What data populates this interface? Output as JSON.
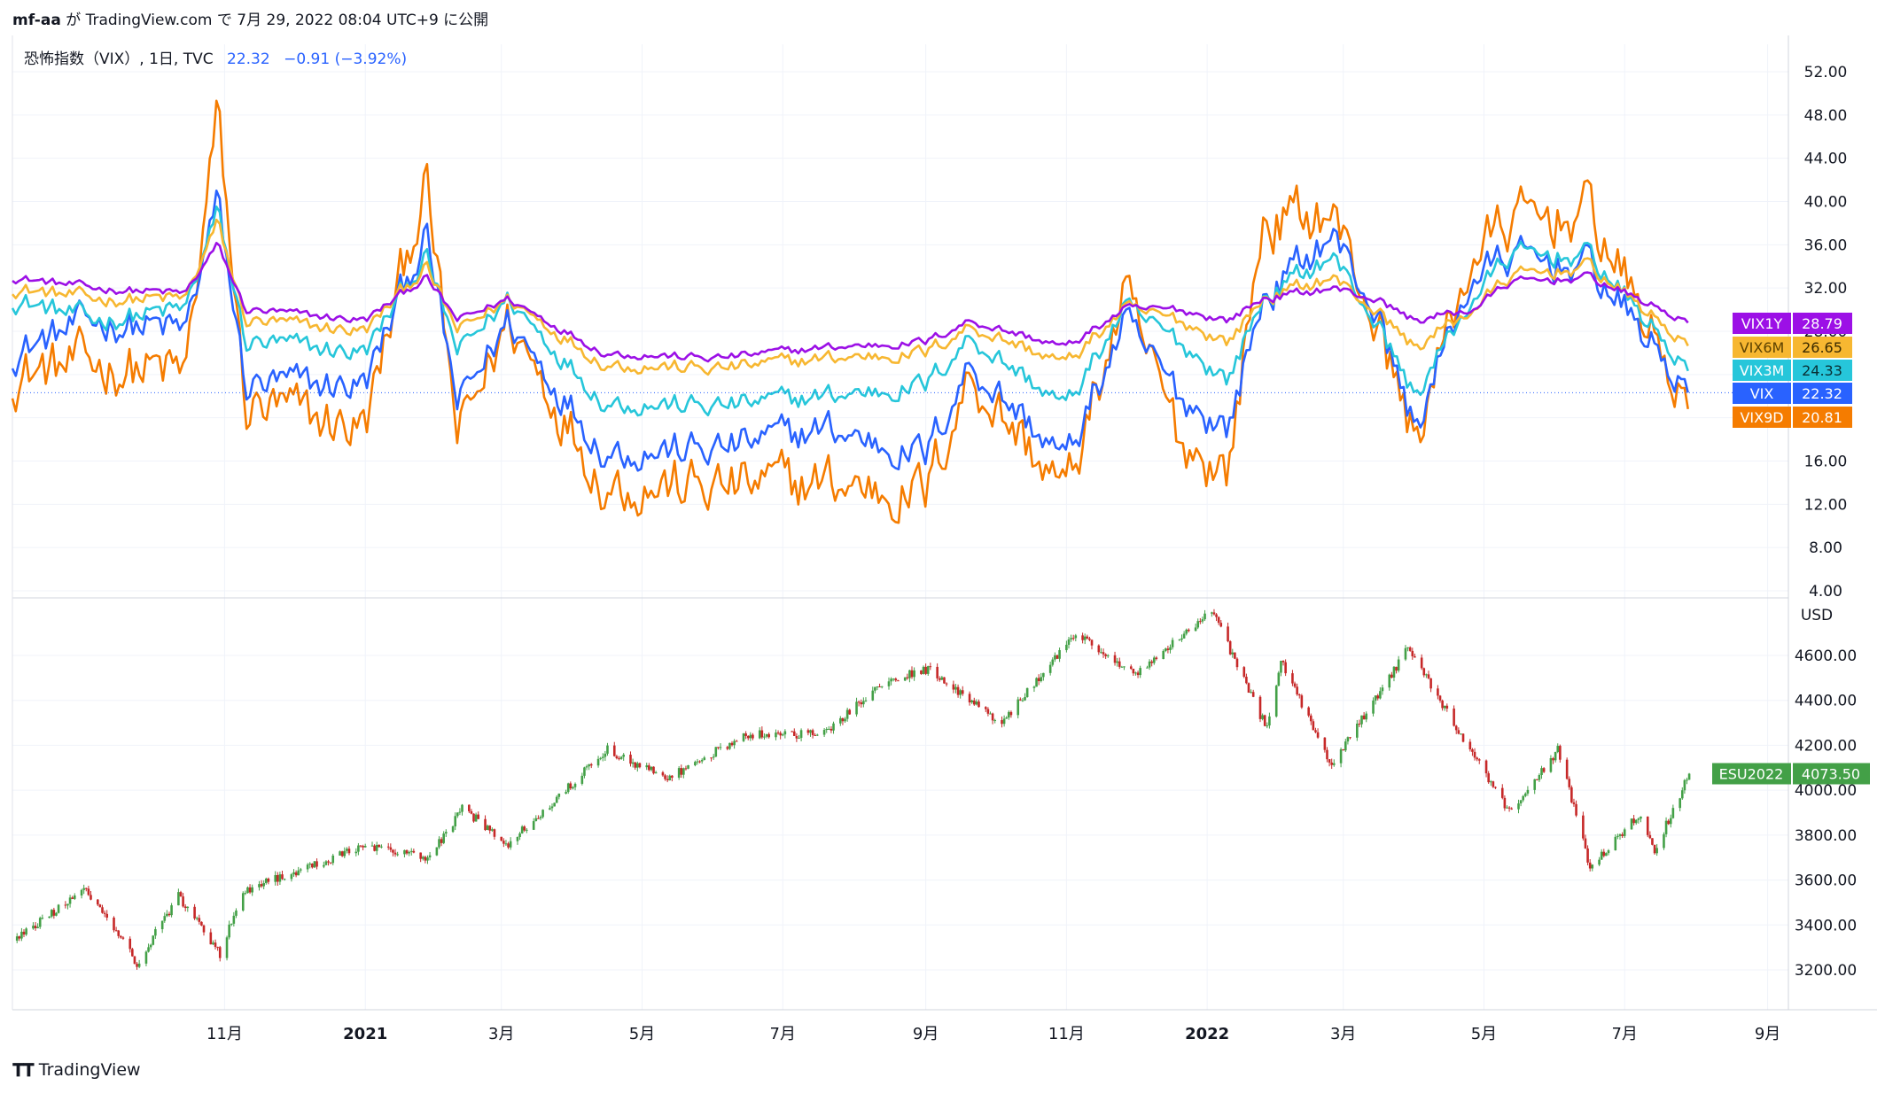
{
  "header": {
    "publisher": "mf-aa",
    "text": "が TradingView.com で 7月 29, 2022 08:04 UTC+9 に公開"
  },
  "legend": {
    "title": "恐怖指数（VIX）, 1日, TVC",
    "value": "22.32",
    "change": "−0.91 (−3.92%)"
  },
  "footer": {
    "brand": "TradingView"
  },
  "colors": {
    "VIX1Y": "#9c10e6",
    "VIX6M": "#f7b731",
    "VIX3M": "#26c6da",
    "VIX": "#2962ff",
    "VIX9D": "#f57c00",
    "up": "#26a69a",
    "up_es": "#43a047",
    "down": "#c62828",
    "grid": "#f0f3fa",
    "axis_text": "#131722"
  },
  "chart_data": [
    {
      "type": "line",
      "name": "vix-term-structure",
      "y_axis_labels": [
        "52.00",
        "48.00",
        "44.00",
        "40.00",
        "36.00",
        "32.00",
        "28.00",
        "24.00",
        "20.00",
        "16.00",
        "12.00",
        "8.00",
        "4.00"
      ],
      "ylim": [
        4,
        52
      ],
      "x_range": [
        "2020-08-01",
        "2022-09-10"
      ],
      "x_tick_labels": [
        "11月",
        "2021",
        "3月",
        "5月",
        "7月",
        "9月",
        "11月",
        "2022",
        "3月",
        "5月",
        "7月",
        "9月"
      ],
      "x_ticks": [
        "2020-11-01",
        "2021-01-01",
        "2021-03-01",
        "2021-05-01",
        "2021-07-01",
        "2021-09-01",
        "2021-11-01",
        "2022-01-01",
        "2022-03-01",
        "2022-05-01",
        "2022-07-01",
        "2022-09-01"
      ],
      "last_value_line": 22.32,
      "series": [
        {
          "name": "VIX1Y",
          "last_label": "28.79",
          "points": [
            [
              "2020-08-01",
              33
            ],
            [
              "2020-09-05",
              32
            ],
            [
              "2020-10-15",
              31.5
            ],
            [
              "2020-10-29",
              36
            ],
            [
              "2020-11-10",
              30
            ],
            [
              "2021-01-01",
              29
            ],
            [
              "2021-01-27",
              33
            ],
            [
              "2021-02-10",
              29
            ],
            [
              "2021-03-04",
              31
            ],
            [
              "2021-04-15",
              26
            ],
            [
              "2021-06-01",
              25.5
            ],
            [
              "2021-07-20",
              26.5
            ],
            [
              "2021-09-01",
              27
            ],
            [
              "2021-09-20",
              29
            ],
            [
              "2021-11-01",
              26.5
            ],
            [
              "2021-11-26",
              30
            ],
            [
              "2021-12-20",
              30
            ],
            [
              "2022-01-10",
              29
            ],
            [
              "2022-01-25",
              31
            ],
            [
              "2022-02-24",
              32
            ],
            [
              "2022-03-15",
              31
            ],
            [
              "2022-04-01",
              29
            ],
            [
              "2022-04-26",
              30
            ],
            [
              "2022-05-12",
              32.5
            ],
            [
              "2022-06-16",
              33
            ],
            [
              "2022-07-29",
              28.79
            ]
          ]
        },
        {
          "name": "VIX6M",
          "last_label": "26.65",
          "points": [
            [
              "2020-08-01",
              32
            ],
            [
              "2020-09-05",
              31
            ],
            [
              "2020-10-15",
              31
            ],
            [
              "2020-10-29",
              38
            ],
            [
              "2020-11-10",
              29
            ],
            [
              "2021-01-01",
              28
            ],
            [
              "2021-01-27",
              34
            ],
            [
              "2021-02-10",
              28
            ],
            [
              "2021-03-04",
              31
            ],
            [
              "2021-04-15",
              25
            ],
            [
              "2021-06-01",
              24.5
            ],
            [
              "2021-07-20",
              25.5
            ],
            [
              "2021-09-01",
              26
            ],
            [
              "2021-09-20",
              28.5
            ],
            [
              "2021-11-01",
              25
            ],
            [
              "2021-11-26",
              30
            ],
            [
              "2021-12-20",
              29
            ],
            [
              "2022-01-10",
              27
            ],
            [
              "2022-01-25",
              31
            ],
            [
              "2022-02-24",
              33
            ],
            [
              "2022-03-15",
              30
            ],
            [
              "2022-04-01",
              26.5
            ],
            [
              "2022-04-26",
              30
            ],
            [
              "2022-05-12",
              33
            ],
            [
              "2022-06-16",
              34
            ],
            [
              "2022-07-29",
              26.65
            ]
          ]
        },
        {
          "name": "VIX3M",
          "last_label": "24.33",
          "points": [
            [
              "2020-08-01",
              31
            ],
            [
              "2020-09-05",
              29
            ],
            [
              "2020-10-15",
              30
            ],
            [
              "2020-10-29",
              39
            ],
            [
              "2020-11-10",
              27
            ],
            [
              "2021-01-01",
              26
            ],
            [
              "2021-01-27",
              35
            ],
            [
              "2021-02-10",
              26
            ],
            [
              "2021-03-04",
              31
            ],
            [
              "2021-04-15",
              21.5
            ],
            [
              "2021-06-01",
              21
            ],
            [
              "2021-07-20",
              22
            ],
            [
              "2021-09-01",
              23
            ],
            [
              "2021-09-20",
              27.5
            ],
            [
              "2021-11-01",
              21
            ],
            [
              "2021-11-26",
              30
            ],
            [
              "2021-12-20",
              27
            ],
            [
              "2022-01-10",
              23.5
            ],
            [
              "2022-01-25",
              31
            ],
            [
              "2022-02-24",
              35
            ],
            [
              "2022-03-15",
              29
            ],
            [
              "2022-04-01",
              22
            ],
            [
              "2022-04-26",
              31
            ],
            [
              "2022-05-12",
              35
            ],
            [
              "2022-06-16",
              35
            ],
            [
              "2022-07-29",
              24.33
            ]
          ]
        },
        {
          "name": "VIX",
          "last_label": "22.32",
          "points": [
            [
              "2020-08-01",
              26
            ],
            [
              "2020-09-05",
              29
            ],
            [
              "2020-10-15",
              28
            ],
            [
              "2020-10-29",
              40
            ],
            [
              "2020-11-10",
              23
            ],
            [
              "2021-01-01",
              23
            ],
            [
              "2021-01-27",
              37
            ],
            [
              "2021-02-10",
              21
            ],
            [
              "2021-03-04",
              29
            ],
            [
              "2021-04-15",
              17
            ],
            [
              "2021-06-01",
              17
            ],
            [
              "2021-07-20",
              19
            ],
            [
              "2021-09-01",
              16.5
            ],
            [
              "2021-09-20",
              25
            ],
            [
              "2021-11-01",
              16
            ],
            [
              "2021-11-26",
              28.6
            ],
            [
              "2021-12-20",
              22
            ],
            [
              "2022-01-10",
              19
            ],
            [
              "2022-01-25",
              31
            ],
            [
              "2022-02-24",
              37
            ],
            [
              "2022-03-15",
              30
            ],
            [
              "2022-04-01",
              19
            ],
            [
              "2022-04-26",
              33
            ],
            [
              "2022-05-12",
              34.8
            ],
            [
              "2022-06-16",
              34
            ],
            [
              "2022-07-29",
              22.32
            ]
          ]
        },
        {
          "name": "VIX9D",
          "last_label": "20.81",
          "points": [
            [
              "2020-08-01",
              24
            ],
            [
              "2020-09-05",
              25
            ],
            [
              "2020-10-15",
              24
            ],
            [
              "2020-10-29",
              48
            ],
            [
              "2020-11-10",
              21
            ],
            [
              "2021-01-01",
              19
            ],
            [
              "2021-01-27",
              42
            ],
            [
              "2021-02-10",
              18
            ],
            [
              "2021-03-04",
              29
            ],
            [
              "2021-04-15",
              14
            ],
            [
              "2021-06-01",
              13.5
            ],
            [
              "2021-07-20",
              14
            ],
            [
              "2021-09-01",
              13
            ],
            [
              "2021-09-20",
              24
            ],
            [
              "2021-11-01",
              13
            ],
            [
              "2021-11-26",
              31
            ],
            [
              "2021-12-20",
              18
            ],
            [
              "2022-01-10",
              15
            ],
            [
              "2022-01-25",
              38
            ],
            [
              "2022-02-24",
              39
            ],
            [
              "2022-03-15",
              29
            ],
            [
              "2022-04-01",
              18
            ],
            [
              "2022-04-26",
              35
            ],
            [
              "2022-05-12",
              38
            ],
            [
              "2022-06-16",
              39
            ],
            [
              "2022-07-29",
              20.81
            ]
          ]
        }
      ]
    },
    {
      "type": "candlestick",
      "name": "ESU2022",
      "y_axis_unit": "USD",
      "y_axis_labels": [
        "4600.00",
        "4400.00",
        "4200.00",
        "4000.00",
        "3800.00",
        "3600.00",
        "3400.00",
        "3200.00"
      ],
      "ylim": [
        3020,
        4730
      ],
      "last_label": "4073.50",
      "path": [
        [
          "2020-08-01",
          3330
        ],
        [
          "2020-09-02",
          3560
        ],
        [
          "2020-09-24",
          3230
        ],
        [
          "2020-10-12",
          3530
        ],
        [
          "2020-10-30",
          3270
        ],
        [
          "2020-11-09",
          3550
        ],
        [
          "2020-12-31",
          3750
        ],
        [
          "2021-01-29",
          3700
        ],
        [
          "2021-02-12",
          3920
        ],
        [
          "2021-03-04",
          3760
        ],
        [
          "2021-04-16",
          4180
        ],
        [
          "2021-05-12",
          4050
        ],
        [
          "2021-06-15",
          4250
        ],
        [
          "2021-07-19",
          4250
        ],
        [
          "2021-08-13",
          4480
        ],
        [
          "2021-09-02",
          4540
        ],
        [
          "2021-10-04",
          4300
        ],
        [
          "2021-11-05",
          4700
        ],
        [
          "2021-12-01",
          4510
        ],
        [
          "2022-01-03",
          4800
        ],
        [
          "2022-01-27",
          4270
        ],
        [
          "2022-02-02",
          4580
        ],
        [
          "2022-02-24",
          4110
        ],
        [
          "2022-03-29",
          4630
        ],
        [
          "2022-05-12",
          3900
        ],
        [
          "2022-06-02",
          4180
        ],
        [
          "2022-06-16",
          3660
        ],
        [
          "2022-07-08",
          3900
        ],
        [
          "2022-07-14",
          3730
        ],
        [
          "2022-07-29",
          4073.5
        ]
      ]
    }
  ]
}
